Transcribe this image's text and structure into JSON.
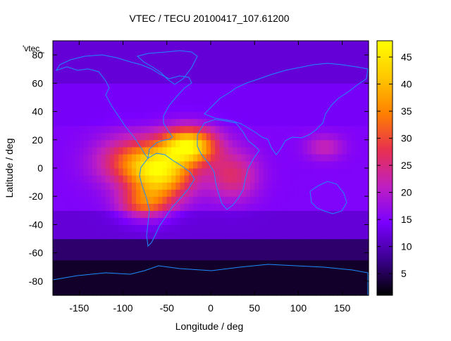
{
  "chart_data": {
    "type": "heatmap",
    "title": "VTEC / TECU 20100417_107.61200",
    "xlabel": "Longitude / deg",
    "ylabel": "Latitude / deg",
    "xlim": [
      -180,
      180
    ],
    "ylim": [
      -90,
      90
    ],
    "xticks": [
      -150,
      -100,
      -50,
      0,
      50,
      100,
      150
    ],
    "yticks": [
      80,
      60,
      40,
      20,
      0,
      -20,
      -40,
      -60,
      -80
    ],
    "colorbar": {
      "range": [
        1,
        48
      ],
      "ticks": [
        5,
        10,
        15,
        20,
        25,
        30,
        35,
        40,
        45
      ],
      "colormap": [
        "#000000",
        "#3c0090",
        "#7a00ff",
        "#c020c0",
        "#e83050",
        "#ff8000",
        "#ffc800",
        "#ffff00"
      ]
    },
    "legend_entry": "'vtec_",
    "field": {
      "background": [
        {
          "lat_max": 90,
          "lat_min": 60,
          "value": 12
        },
        {
          "lat_max": 60,
          "lat_min": 30,
          "value": 14
        },
        {
          "lat_max": 30,
          "lat_min": -30,
          "value": 15
        },
        {
          "lat_max": -30,
          "lat_min": -50,
          "value": 12
        },
        {
          "lat_max": -50,
          "lat_min": -65,
          "value": 6
        },
        {
          "lat_max": -65,
          "lat_min": -90,
          "value": 3
        }
      ],
      "peaks": [
        {
          "lon": -25,
          "lat": 16,
          "value": 45,
          "sigma_lon": 22,
          "sigma_lat": 9
        },
        {
          "lon": -55,
          "lat": -5,
          "value": 38,
          "sigma_lon": 25,
          "sigma_lat": 12
        },
        {
          "lon": -85,
          "lat": 5,
          "value": 32,
          "sigma_lon": 30,
          "sigma_lat": 12
        },
        {
          "lon": -75,
          "lat": -25,
          "value": 30,
          "sigma_lon": 20,
          "sigma_lat": 8
        },
        {
          "lon": 25,
          "lat": -5,
          "value": 26,
          "sigma_lon": 20,
          "sigma_lat": 12
        },
        {
          "lon": 130,
          "lat": 15,
          "value": 22,
          "sigma_lon": 15,
          "sigma_lat": 6
        }
      ]
    }
  }
}
